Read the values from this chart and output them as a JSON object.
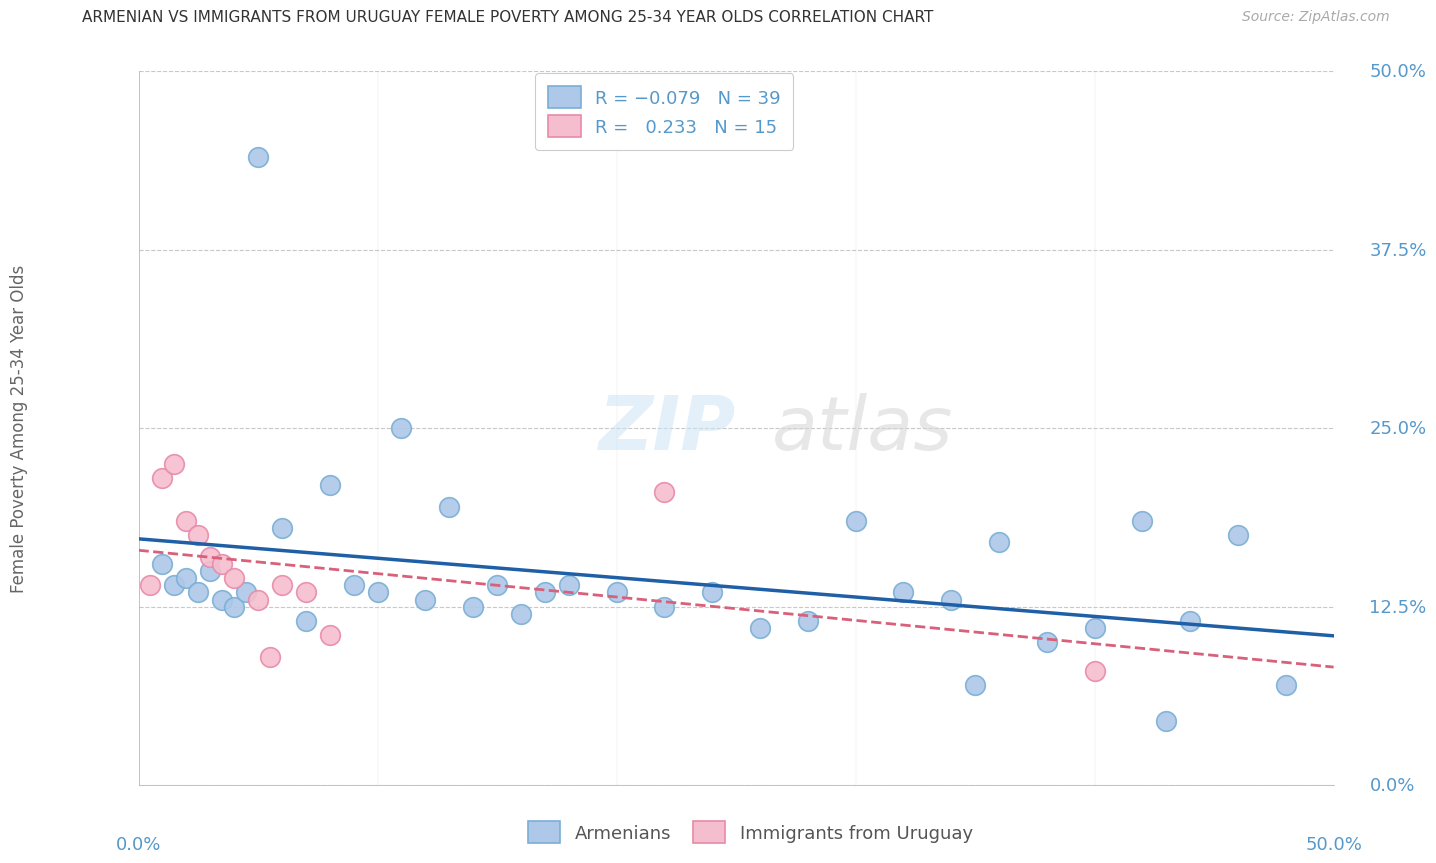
{
  "title": "ARMENIAN VS IMMIGRANTS FROM URUGUAY FEMALE POVERTY AMONG 25-34 YEAR OLDS CORRELATION CHART",
  "source": "Source: ZipAtlas.com",
  "ylabel": "Female Poverty Among 25-34 Year Olds",
  "ytick_values": [
    0.0,
    12.5,
    25.0,
    37.5,
    50.0
  ],
  "xlim": [
    0,
    50
  ],
  "ylim": [
    0,
    50
  ],
  "watermark_zip": "ZIP",
  "watermark_atlas": "atlas",
  "armenian_color": "#adc8e8",
  "armenian_edge": "#7aafd4",
  "uruguay_color": "#f5bece",
  "uruguay_edge": "#e88aaa",
  "trend_armenian_color": "#1f5fa6",
  "trend_uruguay_color": "#d9607a",
  "armenian_x": [
    1.0,
    1.5,
    2.0,
    2.5,
    3.0,
    3.5,
    4.0,
    4.5,
    5.0,
    6.0,
    7.0,
    8.0,
    9.0,
    10.0,
    11.0,
    12.0,
    13.0,
    14.0,
    15.0,
    16.0,
    17.0,
    18.0,
    20.0,
    22.0,
    24.0,
    26.0,
    28.0,
    30.0,
    32.0,
    34.0,
    35.0,
    36.0,
    38.0,
    40.0,
    42.0,
    43.0,
    44.0,
    46.0,
    48.0
  ],
  "armenian_y": [
    15.5,
    14.0,
    14.5,
    13.5,
    15.0,
    13.0,
    12.5,
    13.5,
    44.0,
    18.0,
    11.5,
    21.0,
    14.0,
    13.5,
    25.0,
    13.0,
    19.5,
    12.5,
    14.0,
    12.0,
    13.5,
    14.0,
    13.5,
    12.5,
    13.5,
    11.0,
    11.5,
    18.5,
    13.5,
    13.0,
    7.0,
    17.0,
    10.0,
    11.0,
    18.5,
    4.5,
    11.5,
    17.5,
    7.0
  ],
  "uruguay_x": [
    0.5,
    1.0,
    1.5,
    2.0,
    2.5,
    3.0,
    3.5,
    4.0,
    5.0,
    5.5,
    6.0,
    7.0,
    8.0,
    22.0,
    40.0
  ],
  "uruguay_y": [
    14.0,
    21.5,
    22.5,
    18.5,
    17.5,
    16.0,
    15.5,
    14.5,
    13.0,
    9.0,
    14.0,
    13.5,
    10.5,
    20.5,
    8.0
  ],
  "background_color": "#ffffff",
  "grid_color": "#c8c8c8",
  "title_color": "#333333",
  "axis_label_color": "#666666",
  "tick_color": "#5599cc",
  "legend_border_color": "#cccccc"
}
